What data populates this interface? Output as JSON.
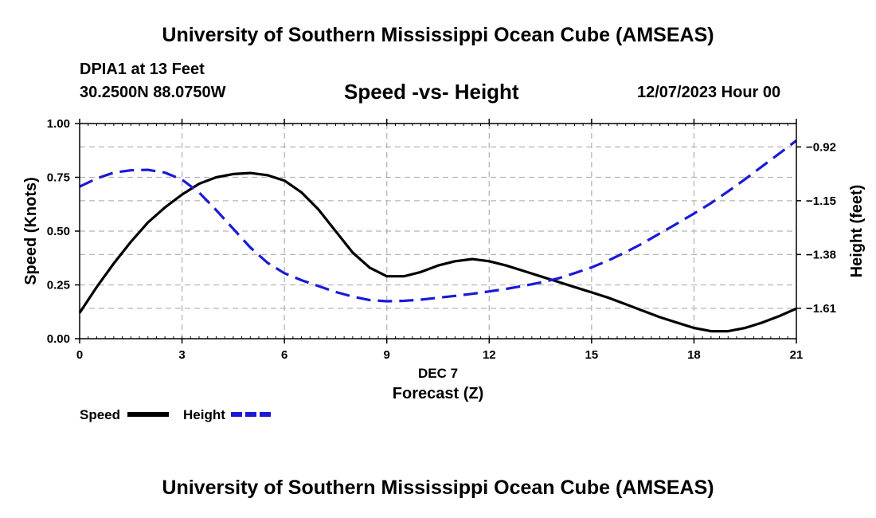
{
  "header": {
    "title": "University of Southern Mississippi Ocean Cube (AMSEAS)",
    "station": "DPIA1 at 13 Feet",
    "coordinates": "30.2500N  88.0750W",
    "chart_title": "Speed -vs- Height",
    "datetime": "12/07/2023 Hour 00"
  },
  "footer": {
    "title": "University of Southern Mississippi Ocean Cube (AMSEAS)"
  },
  "chart_data": {
    "type": "line",
    "title": "Speed -vs- Height",
    "xlabel": "Forecast (Z)",
    "xsublabel": "DEC 7",
    "ylabel": "Speed (Knots)",
    "y2label": "Height (feet)",
    "xlim": [
      0,
      21
    ],
    "ylim": [
      0,
      1
    ],
    "y2lim": [
      -1.74,
      -0.82
    ],
    "xticks": [
      0,
      3,
      6,
      9,
      12,
      15,
      18,
      21
    ],
    "xtick_labels": [
      "0",
      "3",
      "6",
      "9",
      "12",
      "15",
      "18",
      "21"
    ],
    "yticks": [
      0,
      0.25,
      0.5,
      0.75,
      1.0
    ],
    "ytick_labels": [
      "0.00",
      "0.25",
      "0.50",
      "0.75",
      "1.00"
    ],
    "y2ticks": [
      -0.92,
      -1.15,
      -1.38,
      -1.61
    ],
    "y2tick_labels": [
      "−0.92",
      "−1.15",
      "−1.38",
      "−1.61"
    ],
    "grid": true,
    "series": [
      {
        "name": "Speed",
        "axis": "left",
        "color": "#000000",
        "style": "solid",
        "x": [
          0,
          0.5,
          1,
          1.5,
          2,
          2.5,
          3,
          3.5,
          4,
          4.5,
          5,
          5.5,
          6,
          6.5,
          7,
          7.5,
          8,
          8.5,
          9,
          9.5,
          10,
          10.5,
          11,
          11.5,
          12,
          12.5,
          13,
          13.5,
          14,
          14.5,
          15,
          15.5,
          16,
          16.5,
          17,
          17.5,
          18,
          18.5,
          19,
          19.5,
          20,
          20.5,
          21
        ],
        "values": [
          0.12,
          0.24,
          0.35,
          0.45,
          0.54,
          0.61,
          0.67,
          0.72,
          0.75,
          0.765,
          0.77,
          0.76,
          0.735,
          0.68,
          0.6,
          0.5,
          0.4,
          0.33,
          0.29,
          0.29,
          0.31,
          0.34,
          0.36,
          0.37,
          0.36,
          0.34,
          0.315,
          0.29,
          0.265,
          0.24,
          0.215,
          0.19,
          0.16,
          0.13,
          0.1,
          0.075,
          0.05,
          0.035,
          0.035,
          0.05,
          0.075,
          0.105,
          0.14
        ]
      },
      {
        "name": "Height",
        "axis": "right",
        "color": "#1a1ad6",
        "style": "dashed",
        "x": [
          0,
          0.5,
          1,
          1.5,
          2,
          2.5,
          3,
          3.5,
          4,
          4.5,
          5,
          5.5,
          6,
          6.5,
          7,
          7.5,
          8,
          8.5,
          9,
          9.5,
          10,
          10.5,
          11,
          11.5,
          12,
          12.5,
          13,
          13.5,
          14,
          14.5,
          15,
          15.5,
          16,
          16.5,
          17,
          17.5,
          18,
          18.5,
          19,
          19.5,
          20,
          20.5,
          21
        ],
        "values": [
          -1.09,
          -1.055,
          -1.03,
          -1.02,
          -1.018,
          -1.03,
          -1.06,
          -1.115,
          -1.19,
          -1.27,
          -1.35,
          -1.415,
          -1.46,
          -1.49,
          -1.515,
          -1.54,
          -1.56,
          -1.575,
          -1.58,
          -1.578,
          -1.573,
          -1.565,
          -1.557,
          -1.548,
          -1.538,
          -1.527,
          -1.514,
          -1.5,
          -1.483,
          -1.46,
          -1.435,
          -1.405,
          -1.37,
          -1.332,
          -1.29,
          -1.248,
          -1.205,
          -1.16,
          -1.11,
          -1.058,
          -1.003,
          -0.948,
          -0.893
        ]
      }
    ],
    "legend": {
      "position": "bottom-left",
      "items": [
        {
          "label": "Speed",
          "color": "#000000",
          "style": "solid"
        },
        {
          "label": "Height",
          "color": "#1a1ad6",
          "style": "dashed"
        }
      ]
    }
  }
}
